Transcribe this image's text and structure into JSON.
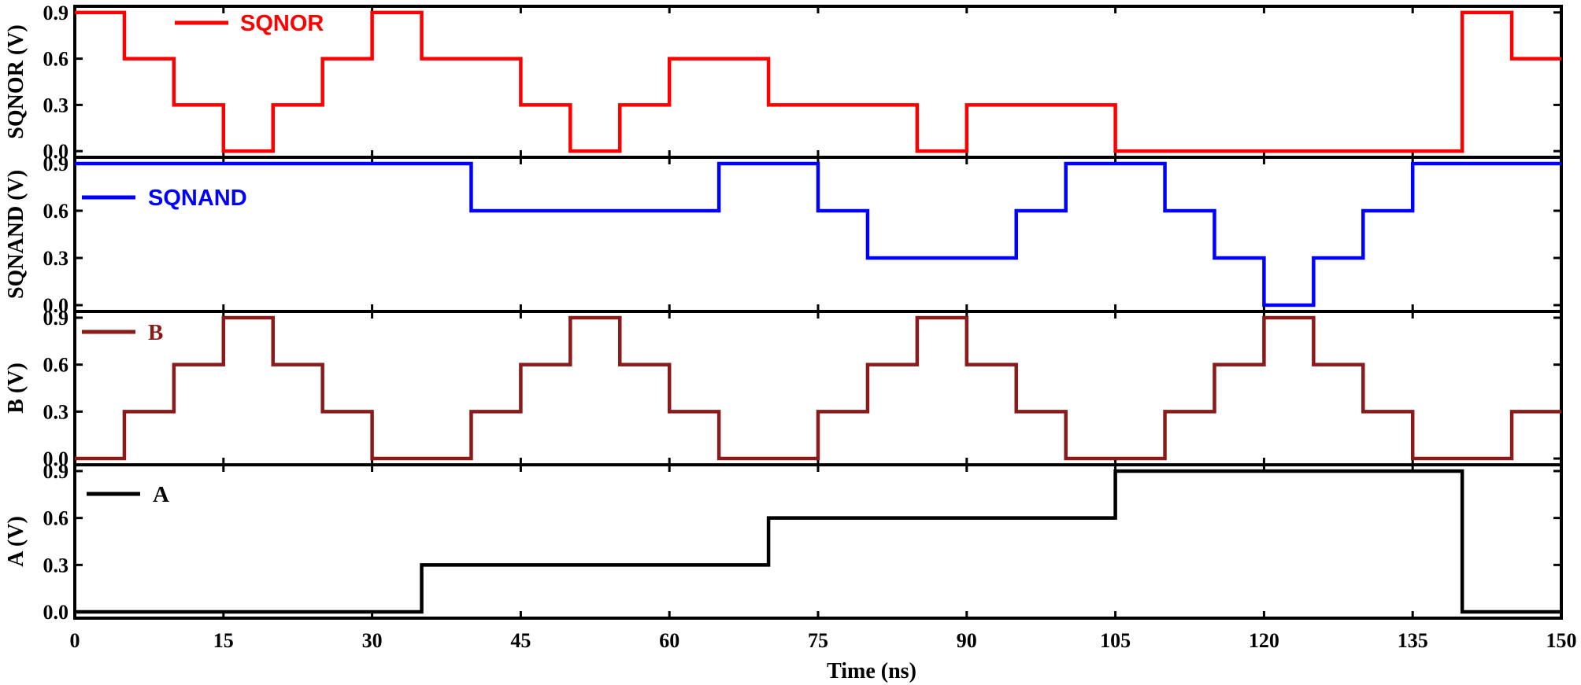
{
  "chart_data": {
    "type": "line",
    "xlabel": "Time (ns)",
    "xlim": [
      0,
      150
    ],
    "x_ticks": [
      0,
      15,
      30,
      45,
      60,
      75,
      90,
      105,
      120,
      135,
      150
    ],
    "y_ticks": [
      0.0,
      0.3,
      0.6,
      0.9
    ],
    "y_tick_labels": [
      "0.0",
      "0.3",
      "0.6",
      "0.9"
    ],
    "ylim": [
      -0.04,
      0.94
    ],
    "legend_position": "top-left",
    "grid": false,
    "panels": [
      {
        "id": "sqnor",
        "ylabel": "SQNOR (V)",
        "series": [
          {
            "name": "SQNOR",
            "color": "#ff0000",
            "x": [
              0,
              5,
              10,
              15,
              20,
              25,
              30,
              35,
              40,
              45,
              50,
              55,
              60,
              65,
              70,
              75,
              80,
              85,
              90,
              95,
              100,
              105,
              110,
              115,
              120,
              125,
              130,
              135,
              140,
              145,
              150
            ],
            "y": [
              0.9,
              0.6,
              0.3,
              0.0,
              0.3,
              0.6,
              0.9,
              0.6,
              0.6,
              0.3,
              0.0,
              0.3,
              0.6,
              0.6,
              0.3,
              0.3,
              0.3,
              0.0,
              0.3,
              0.3,
              0.3,
              0.0,
              0.0,
              0.0,
              0.0,
              0.0,
              0.0,
              0.0,
              0.9,
              0.6,
              0.6
            ]
          }
        ]
      },
      {
        "id": "sqnand",
        "ylabel": "SQNAND (V)",
        "series": [
          {
            "name": "SQNAND",
            "color": "#0000ff",
            "x": [
              0,
              5,
              10,
              15,
              20,
              25,
              30,
              35,
              40,
              45,
              50,
              55,
              60,
              65,
              70,
              75,
              80,
              85,
              90,
              95,
              100,
              105,
              110,
              115,
              120,
              125,
              130,
              135,
              140,
              145,
              150
            ],
            "y": [
              0.9,
              0.9,
              0.9,
              0.9,
              0.9,
              0.9,
              0.9,
              0.9,
              0.6,
              0.6,
              0.6,
              0.6,
              0.6,
              0.9,
              0.9,
              0.6,
              0.3,
              0.3,
              0.3,
              0.6,
              0.9,
              0.9,
              0.6,
              0.3,
              0.0,
              0.3,
              0.6,
              0.9,
              0.9,
              0.9,
              0.9
            ]
          }
        ]
      },
      {
        "id": "b",
        "ylabel": "B (V)",
        "series": [
          {
            "name": "B",
            "color": "#8b1a1a",
            "x": [
              0,
              5,
              10,
              15,
              20,
              25,
              30,
              35,
              40,
              45,
              50,
              55,
              60,
              65,
              70,
              75,
              80,
              85,
              90,
              95,
              100,
              105,
              110,
              115,
              120,
              125,
              130,
              135,
              140,
              145,
              150
            ],
            "y": [
              0.0,
              0.3,
              0.6,
              0.9,
              0.6,
              0.3,
              0.0,
              0.0,
              0.3,
              0.6,
              0.9,
              0.6,
              0.3,
              0.0,
              0.0,
              0.3,
              0.6,
              0.9,
              0.6,
              0.3,
              0.0,
              0.0,
              0.3,
              0.6,
              0.9,
              0.6,
              0.3,
              0.0,
              0.0,
              0.3,
              0.3
            ]
          }
        ]
      },
      {
        "id": "a",
        "ylabel": "A (V)",
        "series": [
          {
            "name": "A",
            "color": "#000000",
            "x": [
              0,
              35,
              70,
              105,
              140,
              150
            ],
            "y": [
              0.0,
              0.3,
              0.6,
              0.9,
              0.0,
              0.0
            ]
          }
        ]
      }
    ]
  }
}
